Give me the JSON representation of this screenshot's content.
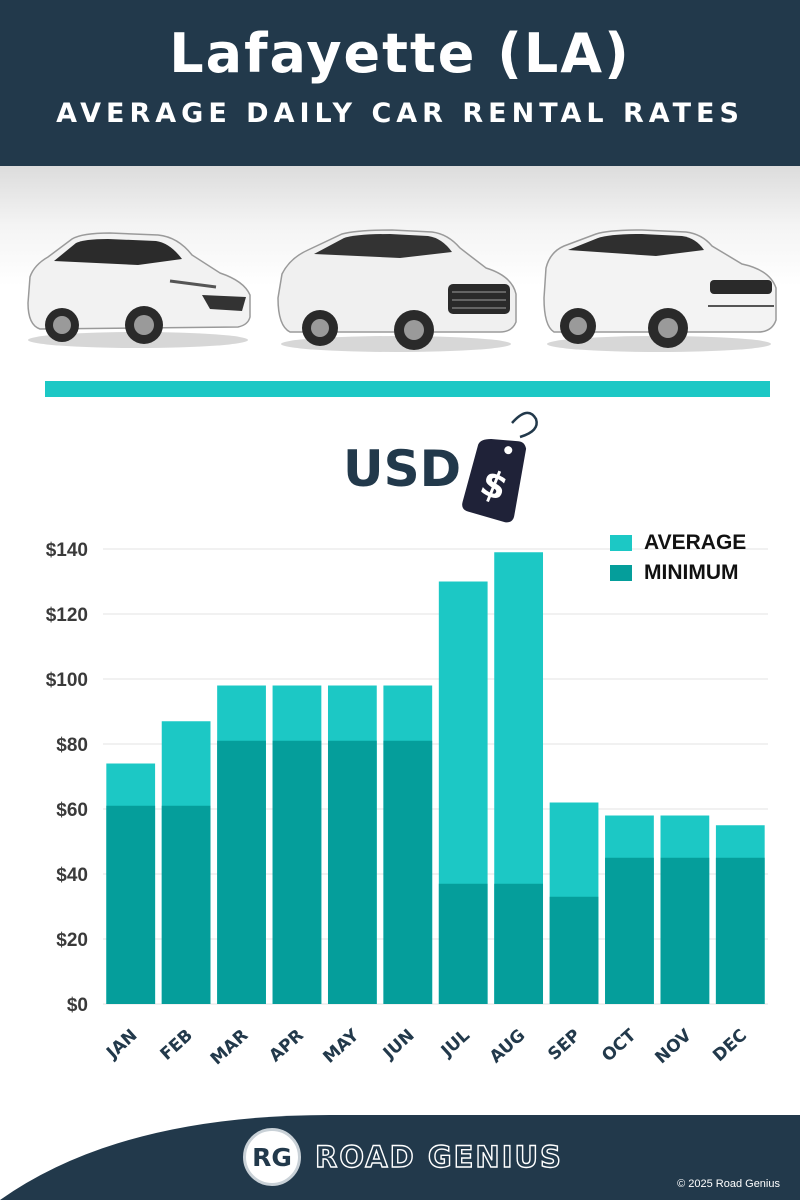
{
  "header": {
    "title": "Lafayette (LA)",
    "subtitle": "AVERAGE DAILY CAR RENTAL RATES"
  },
  "currency_label": "USD",
  "currency_tag_symbol": "$",
  "colors": {
    "header_bg": "#22394b",
    "average": "#1cc8c5",
    "minimum": "#059e9b",
    "divider": "#1cc8c5"
  },
  "chart_data": {
    "type": "bar",
    "stacked_overlay": true,
    "categories": [
      "JAN",
      "FEB",
      "MAR",
      "APR",
      "MAY",
      "JUN",
      "JUL",
      "AUG",
      "SEP",
      "OCT",
      "NOV",
      "DEC"
    ],
    "series": [
      {
        "name": "AVERAGE",
        "values": [
          74,
          87,
          98,
          98,
          98,
          98,
          130,
          139,
          62,
          58,
          58,
          55
        ]
      },
      {
        "name": "MINIMUM",
        "values": [
          61,
          61,
          81,
          81,
          81,
          81,
          37,
          37,
          33,
          45,
          45,
          45
        ]
      }
    ],
    "yticks": [
      "$0",
      "$20",
      "$40",
      "$60",
      "$80",
      "$100",
      "$120",
      "$140"
    ],
    "ylim": [
      0,
      140
    ],
    "grid": true,
    "legend_position": "top-right"
  },
  "footer": {
    "logo_initials": "RG",
    "brand": "ROAD GENIUS",
    "copyright": "© 2025 Road Genius"
  }
}
